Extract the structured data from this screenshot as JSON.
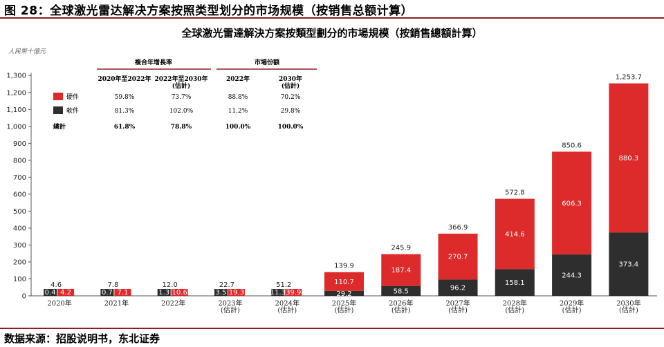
{
  "figure_title": "图 28：全球激光雷达解决方案按照类型划分的市场规模（按销售总额计算）",
  "source": "数据来源：招股说明书，东北证券",
  "colors": {
    "hardware": "#dd2a2a",
    "software": "#2e2e2e",
    "rule": "#8b1e22"
  },
  "chart_data": {
    "type": "bar",
    "stacked": true,
    "title": "全球激光雷達解決方案按類型劃分的市場規模（按銷售總額計算）",
    "unit_label": "人民幣十億元",
    "ylim": [
      0,
      1300
    ],
    "yticks": [
      "0",
      "100",
      "200",
      "300",
      "400",
      "500",
      "600",
      "700",
      "800",
      "900",
      "1,000",
      "1,100",
      "1,200",
      "1,300"
    ],
    "categories": [
      [
        "2020年"
      ],
      [
        "2021年"
      ],
      [
        "2022年"
      ],
      [
        "2023年",
        "(估計)"
      ],
      [
        "2024年",
        "(估計)"
      ],
      [
        "2025年",
        "(估計)"
      ],
      [
        "2026年",
        "(估計)"
      ],
      [
        "2027年",
        "(估計)"
      ],
      [
        "2028年",
        "(估計)"
      ],
      [
        "2029年",
        "(估計)"
      ],
      [
        "2030年",
        "(估計)"
      ]
    ],
    "series": [
      {
        "name": "軟件",
        "color": "#2e2e2e",
        "values": [
          0.4,
          0.7,
          1.3,
          3.5,
          11.3,
          29.2,
          58.5,
          96.2,
          158.1,
          244.3,
          373.4
        ],
        "labels": [
          "0.4",
          "0.7",
          "1.3",
          "3.5",
          "11.3",
          "29.2",
          "58.5",
          "96.2",
          "158.1",
          "244.3",
          "373.4"
        ]
      },
      {
        "name": "硬件",
        "color": "#dd2a2a",
        "values": [
          4.2,
          7.1,
          10.6,
          19.3,
          39.9,
          110.7,
          187.4,
          270.7,
          414.6,
          606.3,
          880.3
        ],
        "labels": [
          "4.2",
          "7.1",
          "10.6",
          "19.3",
          "39.9",
          "110.7",
          "187.4",
          "270.7",
          "414.6",
          "606.3",
          "880.3"
        ]
      }
    ],
    "totals": [
      4.6,
      7.8,
      12.0,
      22.7,
      51.2,
      139.9,
      245.9,
      366.9,
      572.8,
      850.6,
      1253.7
    ],
    "total_labels": [
      "4.6",
      "7.8",
      "12.0",
      "22.7",
      "51.2",
      "139.9",
      "245.9",
      "366.9",
      "572.8",
      "850.6",
      "1,253.7"
    ],
    "inset_table": {
      "group_headers": [
        "複合年增長率",
        "市場份額"
      ],
      "col_headers": [
        [
          "2020年至2022年"
        ],
        [
          "2022年至2030年",
          "(估計)"
        ],
        [
          "2022年"
        ],
        [
          "2030年",
          "(估計)"
        ]
      ],
      "rows": [
        {
          "name": "硬件",
          "values": [
            "59.8%",
            "73.7%",
            "88.8%",
            "70.2%"
          ]
        },
        {
          "name": "軟件",
          "values": [
            "81.3%",
            "102.0%",
            "11.2%",
            "29.8%"
          ]
        },
        {
          "name": "總計",
          "values": [
            "61.8%",
            "78.8%",
            "100.0%",
            "100.0%"
          ]
        }
      ]
    }
  }
}
